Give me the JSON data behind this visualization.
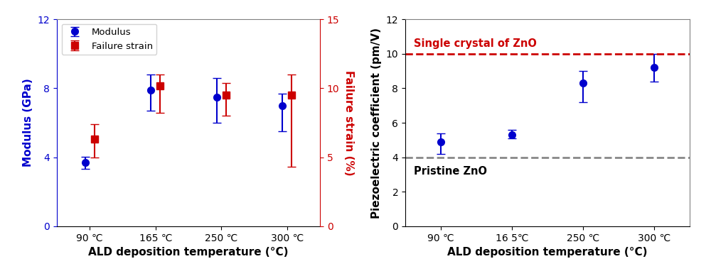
{
  "temps": [
    90,
    165,
    250,
    300
  ],
  "temp_labels": [
    "90 ℃",
    "165 ℃",
    "250 ℃",
    "300 ℃"
  ],
  "temp_labels2": [
    "90 ℃",
    "16 5℃",
    "250 ℃",
    "300 ℃"
  ],
  "modulus_vals": [
    3.7,
    7.9,
    7.5,
    7.0
  ],
  "modulus_err_lo": [
    0.35,
    1.2,
    1.5,
    1.5
  ],
  "modulus_err_hi": [
    0.35,
    0.9,
    1.1,
    0.7
  ],
  "strain_vals": [
    6.3,
    10.2,
    9.5,
    9.5
  ],
  "strain_err_lo": [
    1.3,
    2.0,
    1.5,
    5.2
  ],
  "strain_err_hi": [
    1.1,
    0.8,
    0.9,
    1.5
  ],
  "piezo_vals": [
    4.9,
    5.3,
    8.3,
    9.2
  ],
  "piezo_err_lo": [
    0.7,
    0.2,
    1.1,
    0.8
  ],
  "piezo_err_hi": [
    0.5,
    0.3,
    0.7,
    0.8
  ],
  "modulus_ylim": [
    0,
    12
  ],
  "strain_ylim": [
    0,
    15
  ],
  "piezo_ylim": [
    0,
    12
  ],
  "blue": "#0000CD",
  "red": "#CC0000",
  "gray_dashed": "#888888",
  "left_ylabel": "Modulus (GPa)",
  "right_ylabel": "Failure strain (%)",
  "xlabel": "ALD deposition temperature (°C)",
  "xlabel2": "ALD deposition temperature (°C)",
  "piezo_ylabel": "Piezoelectric coefficient (pm/V)",
  "single_crystal_val": 10.0,
  "pristine_val": 4.0,
  "single_crystal_label": "Single crystal of ZnO",
  "pristine_label": "Pristine ZnO",
  "legend_modulus": "Modulus",
  "legend_strain": "Failure strain"
}
